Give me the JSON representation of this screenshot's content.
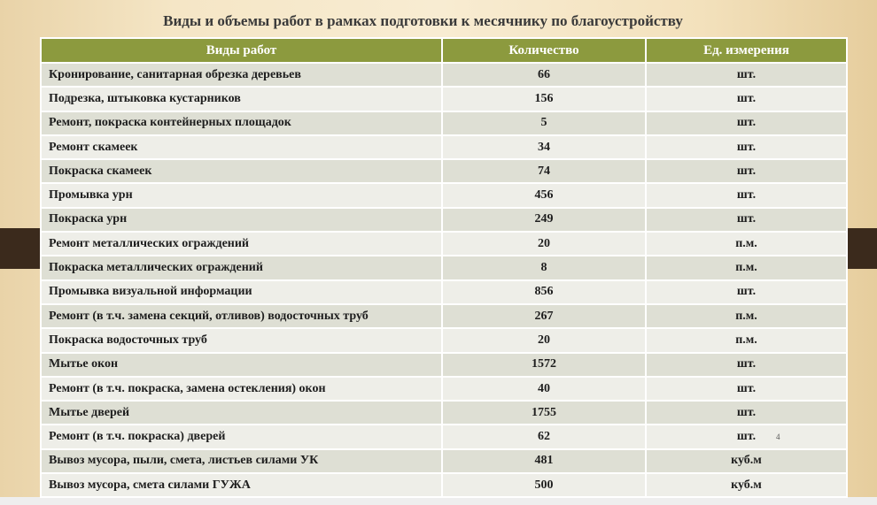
{
  "title": "Виды и объемы работ в рамках подготовки к месячнику по благоустройству",
  "table": {
    "header": [
      "Виды работ",
      "Количество",
      "Ед. измерения"
    ],
    "rows": [
      [
        "Кронирование, санитарная обрезка деревьев",
        "66",
        "шт."
      ],
      [
        "Подрезка, штыковка кустарников",
        "156",
        "шт."
      ],
      [
        "Ремонт, покраска контейнерных площадок",
        "5",
        "шт."
      ],
      [
        "Ремонт скамеек",
        "34",
        "шт."
      ],
      [
        "Покраска скамеек",
        "74",
        "шт."
      ],
      [
        "Промывка урн",
        "456",
        "шт."
      ],
      [
        "Покраска урн",
        "249",
        "шт."
      ],
      [
        "Ремонт металлических ограждений",
        "20",
        "п.м."
      ],
      [
        "Покраска металлических ограждений",
        "8",
        "п.м."
      ],
      [
        "Промывка визуальной информации",
        "856",
        "шт."
      ],
      [
        "Ремонт (в т.ч. замена секций, отливов) водосточных труб",
        "267",
        "п.м."
      ],
      [
        "Покраска водосточных труб",
        "20",
        "п.м."
      ],
      [
        "Мытье окон",
        "1572",
        "шт."
      ],
      [
        "Ремонт (в т.ч. покраска, замена остекления) окон",
        "40",
        "шт."
      ],
      [
        "Мытье дверей",
        "1755",
        "шт."
      ],
      [
        "Ремонт (в т.ч. покраска) дверей",
        "62",
        "шт."
      ],
      [
        "Вывоз мусора,  пыли, смета, листьев силами УК",
        "481",
        "куб.м"
      ],
      [
        "Вывоз мусора, смета силами ГУЖА",
        "500",
        "куб.м"
      ]
    ]
  },
  "page_number": "4"
}
